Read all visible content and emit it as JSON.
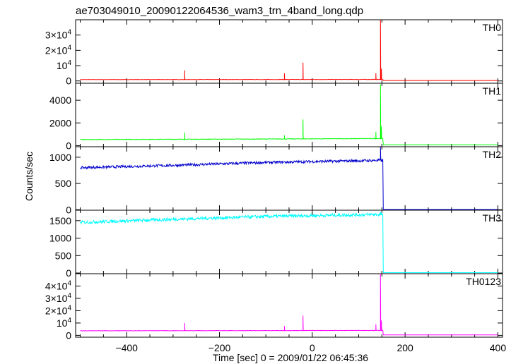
{
  "chart_data": {
    "type": "line",
    "title": "ae703049010_20090122064536_wam3_trn_4band_long.qdp",
    "xlabel": "Time [sec] 0 = 2009/01/22 06:45:36",
    "ylabel": "Counts/sec",
    "xlim": [
      -510,
      410
    ],
    "x_ticks": [
      -400,
      -200,
      0,
      200,
      400
    ],
    "grid": false,
    "panels": [
      {
        "name": "TH0",
        "color": "#ff0000",
        "ylim": [
          -1500,
          40000
        ],
        "y_ticks": [
          {
            "value": 0,
            "base": "0",
            "exp": ""
          },
          {
            "value": 10000,
            "base": "10",
            "exp": "4"
          },
          {
            "value": 20000,
            "base": "2×10",
            "exp": "4"
          },
          {
            "value": 30000,
            "base": "3×10",
            "exp": "4"
          }
        ],
        "series": {
          "baseline": [
            [
              -500,
              900
            ],
            [
              -100,
              950
            ],
            [
              140,
              1000
            ]
          ],
          "noise": 120,
          "spikes": [
            [
              -275,
              7000
            ],
            [
              -60,
              5000
            ],
            [
              -20,
              12000
            ],
            [
              137,
              5000
            ],
            [
              147,
              40000
            ],
            [
              149,
              8000
            ]
          ],
          "after": [
            [
              153,
              300
            ],
            [
              400,
              300
            ]
          ]
        }
      },
      {
        "name": "TH1",
        "color": "#00ff00",
        "ylim": [
          -100,
          5500
        ],
        "y_ticks": [
          {
            "value": 0,
            "base": "0",
            "exp": ""
          },
          {
            "value": 2000,
            "base": "2000",
            "exp": ""
          },
          {
            "value": 4000,
            "base": "4000",
            "exp": ""
          }
        ],
        "series": {
          "baseline": [
            [
              -500,
              530
            ],
            [
              -100,
              580
            ],
            [
              140,
              620
            ]
          ],
          "noise": 25,
          "spikes": [
            [
              -275,
              1150
            ],
            [
              -60,
              900
            ],
            [
              -20,
              2300
            ],
            [
              137,
              1200
            ],
            [
              147,
              5400
            ],
            [
              149,
              1700
            ]
          ],
          "after": [
            [
              153,
              70
            ],
            [
              400,
              70
            ]
          ]
        }
      },
      {
        "name": "TH2",
        "color": "#0000cc",
        "ylim": [
          -10,
          1200
        ],
        "y_ticks": [
          {
            "value": 0,
            "base": "0",
            "exp": ""
          },
          {
            "value": 500,
            "base": "500",
            "exp": ""
          },
          {
            "value": 1000,
            "base": "1000",
            "exp": ""
          }
        ],
        "series": {
          "baseline": [
            [
              -500,
              800
            ],
            [
              -300,
              845
            ],
            [
              -100,
              900
            ],
            [
              145,
              940
            ]
          ],
          "noise": 25,
          "spikes": [
            [
              147,
              1200
            ]
          ],
          "after": [
            [
              153,
              5
            ],
            [
              400,
              5
            ]
          ]
        }
      },
      {
        "name": "TH3",
        "color": "#00ffff",
        "ylim": [
          -20,
          1800
        ],
        "y_ticks": [
          {
            "value": 0,
            "base": "0",
            "exp": ""
          },
          {
            "value": 500,
            "base": "500",
            "exp": ""
          },
          {
            "value": 1000,
            "base": "1000",
            "exp": ""
          },
          {
            "value": 1500,
            "base": "1500",
            "exp": ""
          }
        ],
        "series": {
          "baseline": [
            [
              -500,
              1450
            ],
            [
              -300,
              1540
            ],
            [
              -100,
              1620
            ],
            [
              145,
              1680
            ]
          ],
          "noise": 45,
          "spikes": [
            [
              147,
              1750
            ]
          ],
          "after": [
            [
              153,
              10
            ],
            [
              400,
              10
            ]
          ]
        }
      },
      {
        "name": "TH0123",
        "color": "#ff00ff",
        "ylim": [
          -1500,
          50000
        ],
        "y_ticks": [
          {
            "value": 0,
            "base": "0",
            "exp": ""
          },
          {
            "value": 10000,
            "base": "10",
            "exp": "4"
          },
          {
            "value": 20000,
            "base": "2×10",
            "exp": "4"
          },
          {
            "value": 30000,
            "base": "3×10",
            "exp": "4"
          },
          {
            "value": 40000,
            "base": "4×10",
            "exp": "4"
          }
        ],
        "series": {
          "baseline": [
            [
              -500,
              3700
            ],
            [
              -100,
              3850
            ],
            [
              140,
              4000
            ]
          ],
          "noise": 150,
          "spikes": [
            [
              -275,
              10000
            ],
            [
              -60,
              7500
            ],
            [
              -20,
              16000
            ],
            [
              137,
              9000
            ],
            [
              147,
              50000
            ],
            [
              149,
              12000
            ]
          ],
          "after": [
            [
              153,
              400
            ],
            [
              400,
              400
            ]
          ]
        }
      }
    ]
  }
}
